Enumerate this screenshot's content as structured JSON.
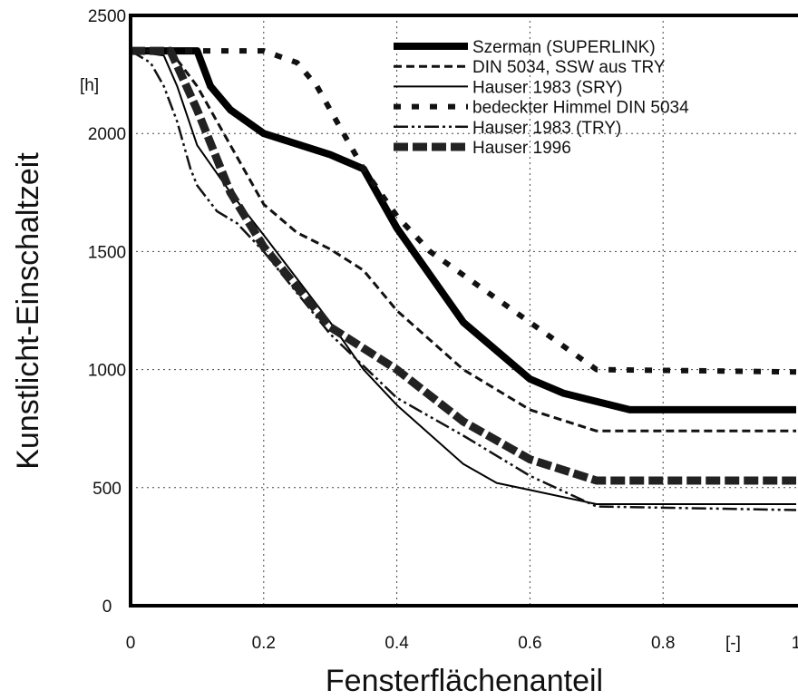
{
  "chart_data": {
    "type": "line",
    "title": "",
    "xlabel": "Fensterflächenanteil",
    "ylabel": "Kunstlicht-Einschaltzeit",
    "x_unit": "[-]",
    "y_unit": "[h]",
    "xlim": [
      0,
      1
    ],
    "ylim": [
      0,
      2500
    ],
    "x_ticks": [
      "0",
      "0.2",
      "0.4",
      "0.6",
      "0.8",
      "1"
    ],
    "y_ticks": [
      "0",
      "500",
      "1000",
      "1500",
      "2000",
      "2500"
    ],
    "grid": "dotted",
    "legend_position": "top-right",
    "series": [
      {
        "name": "Szerman (SUPERLINK)",
        "x": [
          0,
          0.1,
          0.12,
          0.15,
          0.2,
          0.3,
          0.35,
          0.4,
          0.5,
          0.6,
          0.65,
          0.75,
          0.85,
          1.0
        ],
        "y": [
          2350,
          2350,
          2200,
          2100,
          2000,
          1910,
          1850,
          1600,
          1200,
          960,
          900,
          830,
          830,
          830
        ]
      },
      {
        "name": "DIN 5034, SSW aus TRY",
        "x": [
          0,
          0.06,
          0.1,
          0.15,
          0.2,
          0.25,
          0.3,
          0.35,
          0.4,
          0.5,
          0.6,
          0.7,
          1.0
        ],
        "y": [
          2350,
          2350,
          2200,
          1950,
          1700,
          1580,
          1510,
          1420,
          1250,
          1000,
          830,
          740,
          740
        ]
      },
      {
        "name": "Hauser 1983 (SRY)",
        "x": [
          0,
          0.05,
          0.07,
          0.1,
          0.15,
          0.2,
          0.3,
          0.35,
          0.4,
          0.5,
          0.55,
          0.6,
          0.7,
          1.0
        ],
        "y": [
          2350,
          2330,
          2200,
          1950,
          1750,
          1570,
          1200,
          1000,
          850,
          600,
          520,
          490,
          430,
          430
        ]
      },
      {
        "name": "bedeckter Himmel DIN 5034",
        "x": [
          0,
          0.2,
          0.25,
          0.28,
          0.3,
          0.35,
          0.4,
          0.45,
          0.5,
          0.6,
          0.65,
          0.7,
          1.0
        ],
        "y": [
          2350,
          2350,
          2300,
          2200,
          2100,
          1850,
          1650,
          1500,
          1400,
          1200,
          1100,
          1000,
          990
        ]
      },
      {
        "name": "Hauser 1983 (TRY)",
        "x": [
          0,
          0.03,
          0.05,
          0.07,
          0.09,
          0.1,
          0.13,
          0.16,
          0.2,
          0.3,
          0.4,
          0.5,
          0.6,
          0.7,
          1.0
        ],
        "y": [
          2350,
          2300,
          2200,
          2050,
          1850,
          1780,
          1670,
          1620,
          1500,
          1150,
          880,
          720,
          550,
          420,
          405
        ]
      },
      {
        "name": "Hauser 1996",
        "x": [
          0,
          0.06,
          0.1,
          0.15,
          0.2,
          0.3,
          0.4,
          0.5,
          0.6,
          0.7,
          1.0
        ],
        "y": [
          2350,
          2350,
          2100,
          1750,
          1520,
          1180,
          1000,
          780,
          620,
          530,
          530
        ]
      }
    ]
  }
}
